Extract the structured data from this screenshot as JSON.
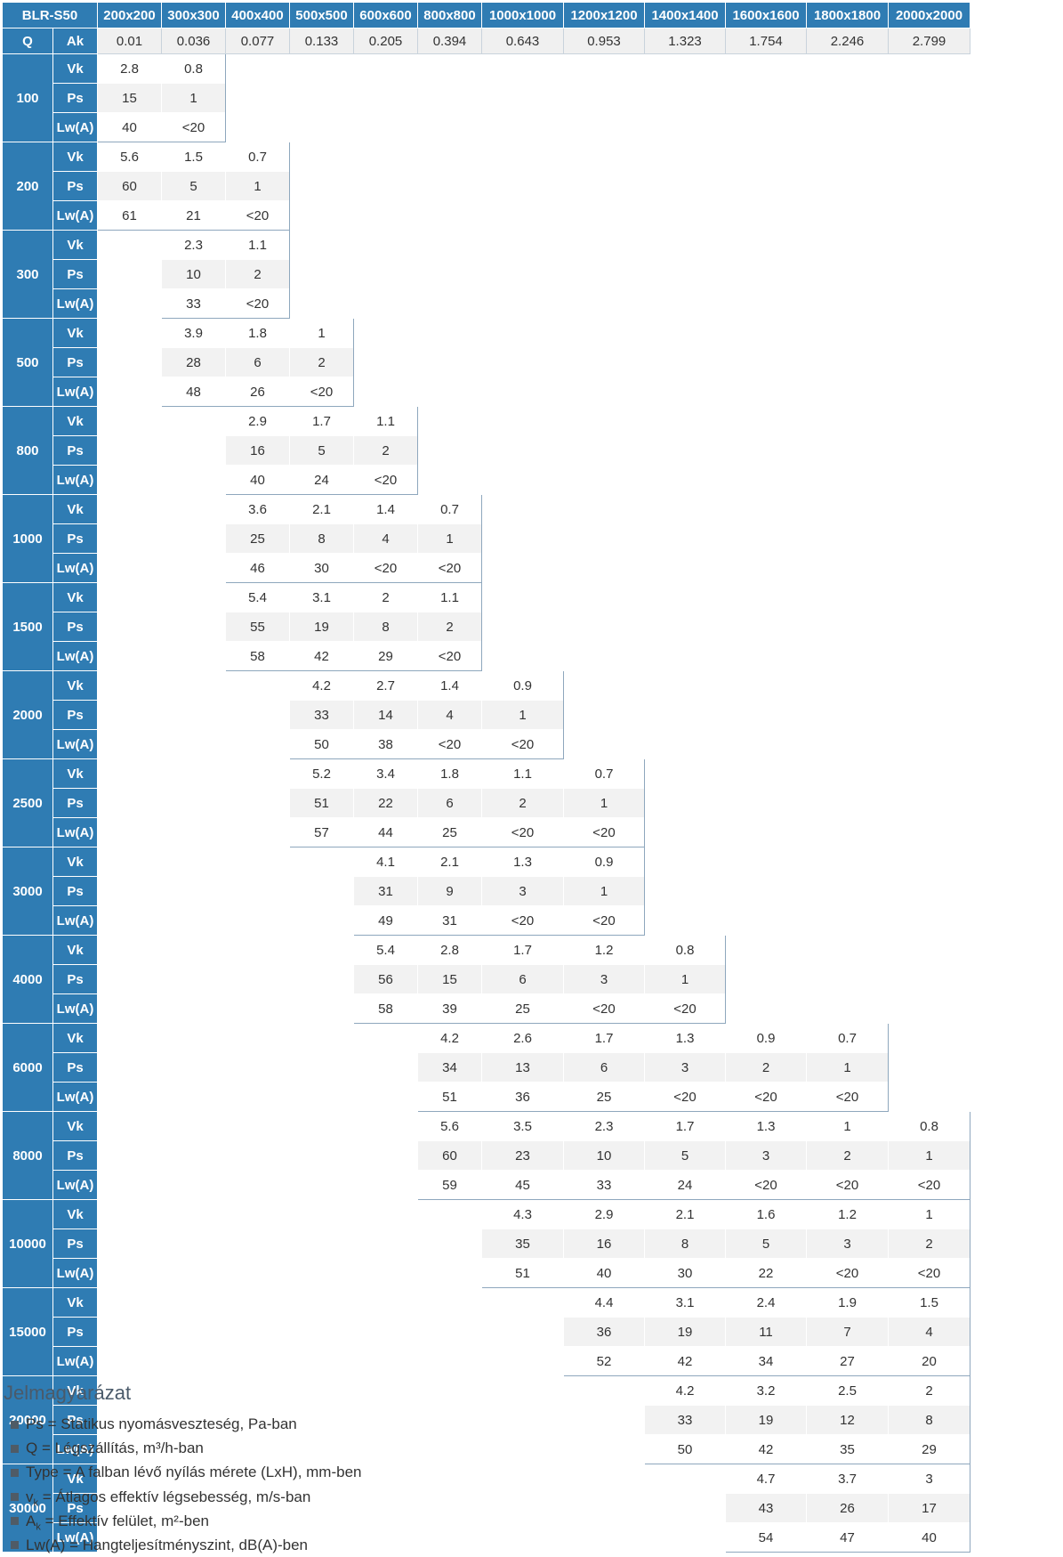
{
  "header": {
    "corner": "BLR-S50",
    "sizes": [
      "200x200",
      "300x300",
      "400x400",
      "500x500",
      "600x600",
      "800x800",
      "1000x1000",
      "1200x1200",
      "1400x1400",
      "1600x1600",
      "1800x1800",
      "2000x2000"
    ]
  },
  "ak_row": {
    "q": "Q",
    "ak": "Ak",
    "values": [
      0.01,
      0.036,
      0.077,
      0.133,
      0.205,
      0.394,
      0.643,
      0.953,
      1.323,
      1.754,
      2.246,
      2.799
    ]
  },
  "row_labels": [
    "Vk",
    "Ps",
    "Lw(A)"
  ],
  "groups": [
    {
      "q": 100,
      "rows": [
        [
          2.8,
          0.8,
          null,
          null,
          null,
          null,
          null,
          null,
          null,
          null,
          null,
          null
        ],
        [
          15,
          1,
          null,
          null,
          null,
          null,
          null,
          null,
          null,
          null,
          null,
          null
        ],
        [
          40,
          "<20",
          null,
          null,
          null,
          null,
          null,
          null,
          null,
          null,
          null,
          null
        ]
      ]
    },
    {
      "q": 200,
      "rows": [
        [
          5.6,
          1.5,
          0.7,
          null,
          null,
          null,
          null,
          null,
          null,
          null,
          null,
          null
        ],
        [
          60,
          5,
          1,
          null,
          null,
          null,
          null,
          null,
          null,
          null,
          null,
          null
        ],
        [
          61,
          21,
          "<20",
          null,
          null,
          null,
          null,
          null,
          null,
          null,
          null,
          null
        ]
      ]
    },
    {
      "q": 300,
      "rows": [
        [
          null,
          2.3,
          1.1,
          null,
          null,
          null,
          null,
          null,
          null,
          null,
          null,
          null
        ],
        [
          null,
          10,
          2,
          null,
          null,
          null,
          null,
          null,
          null,
          null,
          null,
          null
        ],
        [
          null,
          33,
          "<20",
          null,
          null,
          null,
          null,
          null,
          null,
          null,
          null,
          null
        ]
      ]
    },
    {
      "q": 500,
      "rows": [
        [
          null,
          3.9,
          1.8,
          1,
          null,
          null,
          null,
          null,
          null,
          null,
          null,
          null
        ],
        [
          null,
          28,
          6,
          2,
          null,
          null,
          null,
          null,
          null,
          null,
          null,
          null
        ],
        [
          null,
          48,
          26,
          "<20",
          null,
          null,
          null,
          null,
          null,
          null,
          null,
          null
        ]
      ]
    },
    {
      "q": 800,
      "rows": [
        [
          null,
          null,
          2.9,
          1.7,
          1.1,
          null,
          null,
          null,
          null,
          null,
          null,
          null
        ],
        [
          null,
          null,
          16,
          5,
          2,
          null,
          null,
          null,
          null,
          null,
          null,
          null
        ],
        [
          null,
          null,
          40,
          24,
          "<20",
          null,
          null,
          null,
          null,
          null,
          null,
          null
        ]
      ]
    },
    {
      "q": 1000,
      "rows": [
        [
          null,
          null,
          3.6,
          2.1,
          1.4,
          0.7,
          null,
          null,
          null,
          null,
          null,
          null
        ],
        [
          null,
          null,
          25,
          8,
          4,
          1,
          null,
          null,
          null,
          null,
          null,
          null
        ],
        [
          null,
          null,
          46,
          30,
          "<20",
          "<20",
          null,
          null,
          null,
          null,
          null,
          null
        ]
      ]
    },
    {
      "q": 1500,
      "rows": [
        [
          null,
          null,
          5.4,
          3.1,
          2,
          1.1,
          null,
          null,
          null,
          null,
          null,
          null
        ],
        [
          null,
          null,
          55,
          19,
          8,
          2,
          null,
          null,
          null,
          null,
          null,
          null
        ],
        [
          null,
          null,
          58,
          42,
          29,
          "<20",
          null,
          null,
          null,
          null,
          null,
          null
        ]
      ]
    },
    {
      "q": 2000,
      "rows": [
        [
          null,
          null,
          null,
          4.2,
          2.7,
          1.4,
          0.9,
          null,
          null,
          null,
          null,
          null
        ],
        [
          null,
          null,
          null,
          33,
          14,
          4,
          1,
          null,
          null,
          null,
          null,
          null
        ],
        [
          null,
          null,
          null,
          50,
          38,
          "<20",
          "<20",
          null,
          null,
          null,
          null,
          null
        ]
      ]
    },
    {
      "q": 2500,
      "rows": [
        [
          null,
          null,
          null,
          5.2,
          3.4,
          1.8,
          1.1,
          0.7,
          null,
          null,
          null,
          null
        ],
        [
          null,
          null,
          null,
          51,
          22,
          6,
          2,
          1,
          null,
          null,
          null,
          null
        ],
        [
          null,
          null,
          null,
          57,
          44,
          25,
          "<20",
          "<20",
          null,
          null,
          null,
          null
        ]
      ]
    },
    {
      "q": 3000,
      "rows": [
        [
          null,
          null,
          null,
          null,
          4.1,
          2.1,
          1.3,
          0.9,
          null,
          null,
          null,
          null
        ],
        [
          null,
          null,
          null,
          null,
          31,
          9,
          3,
          1,
          null,
          null,
          null,
          null
        ],
        [
          null,
          null,
          null,
          null,
          49,
          31,
          "<20",
          "<20",
          null,
          null,
          null,
          null
        ]
      ]
    },
    {
      "q": 4000,
      "rows": [
        [
          null,
          null,
          null,
          null,
          5.4,
          2.8,
          1.7,
          1.2,
          0.8,
          null,
          null,
          null
        ],
        [
          null,
          null,
          null,
          null,
          56,
          15,
          6,
          3,
          1,
          null,
          null,
          null
        ],
        [
          null,
          null,
          null,
          null,
          58,
          39,
          25,
          "<20",
          "<20",
          null,
          null,
          null
        ]
      ]
    },
    {
      "q": 6000,
      "rows": [
        [
          null,
          null,
          null,
          null,
          null,
          4.2,
          2.6,
          1.7,
          1.3,
          0.9,
          0.7,
          null
        ],
        [
          null,
          null,
          null,
          null,
          null,
          34,
          13,
          6,
          3,
          2,
          1,
          null
        ],
        [
          null,
          null,
          null,
          null,
          null,
          51,
          36,
          25,
          "<20",
          "<20",
          "<20",
          null
        ]
      ]
    },
    {
      "q": 8000,
      "rows": [
        [
          null,
          null,
          null,
          null,
          null,
          5.6,
          3.5,
          2.3,
          1.7,
          1.3,
          1,
          0.8
        ],
        [
          null,
          null,
          null,
          null,
          null,
          60,
          23,
          10,
          5,
          3,
          2,
          1
        ],
        [
          null,
          null,
          null,
          null,
          null,
          59,
          45,
          33,
          24,
          "<20",
          "<20",
          "<20"
        ]
      ]
    },
    {
      "q": 10000,
      "rows": [
        [
          null,
          null,
          null,
          null,
          null,
          null,
          4.3,
          2.9,
          2.1,
          1.6,
          1.2,
          1
        ],
        [
          null,
          null,
          null,
          null,
          null,
          null,
          35,
          16,
          8,
          5,
          3,
          2
        ],
        [
          null,
          null,
          null,
          null,
          null,
          null,
          51,
          40,
          30,
          22,
          "<20",
          "<20"
        ]
      ]
    },
    {
      "q": 15000,
      "rows": [
        [
          null,
          null,
          null,
          null,
          null,
          null,
          null,
          4.4,
          3.1,
          2.4,
          1.9,
          1.5
        ],
        [
          null,
          null,
          null,
          null,
          null,
          null,
          null,
          36,
          19,
          11,
          7,
          4
        ],
        [
          null,
          null,
          null,
          null,
          null,
          null,
          null,
          52,
          42,
          34,
          27,
          20
        ]
      ]
    },
    {
      "q": 20000,
      "rows": [
        [
          null,
          null,
          null,
          null,
          null,
          null,
          null,
          null,
          4.2,
          3.2,
          2.5,
          2
        ],
        [
          null,
          null,
          null,
          null,
          null,
          null,
          null,
          null,
          33,
          19,
          12,
          8
        ],
        [
          null,
          null,
          null,
          null,
          null,
          null,
          null,
          null,
          50,
          42,
          35,
          29
        ]
      ]
    },
    {
      "q": 30000,
      "rows": [
        [
          null,
          null,
          null,
          null,
          null,
          null,
          null,
          null,
          null,
          4.7,
          3.7,
          3
        ],
        [
          null,
          null,
          null,
          null,
          null,
          null,
          null,
          null,
          null,
          43,
          26,
          17
        ],
        [
          null,
          null,
          null,
          null,
          null,
          null,
          null,
          null,
          null,
          54,
          47,
          40
        ]
      ]
    }
  ],
  "legend": {
    "title": "Jelmagyarázat",
    "items": [
      {
        "term": "Ps",
        "text": " = Statikus nyomásveszteség, Pa-ban"
      },
      {
        "term": "Q",
        "text": " = Légszállítás, m³/h-ban"
      },
      {
        "term": "Type",
        "text": " = A falban lévő nyílás mérete (LxH), mm-ben"
      },
      {
        "term": "v",
        "sub": "k",
        "text": " = Átlagos effektív légsebesség, m/s-ban"
      },
      {
        "term": "A",
        "sub": "k",
        "text": " = Effektív felület, m²-ben"
      },
      {
        "term": "Lw(A)",
        "text": " = Hangteljesítményszint, dB(A)-ben"
      }
    ]
  }
}
